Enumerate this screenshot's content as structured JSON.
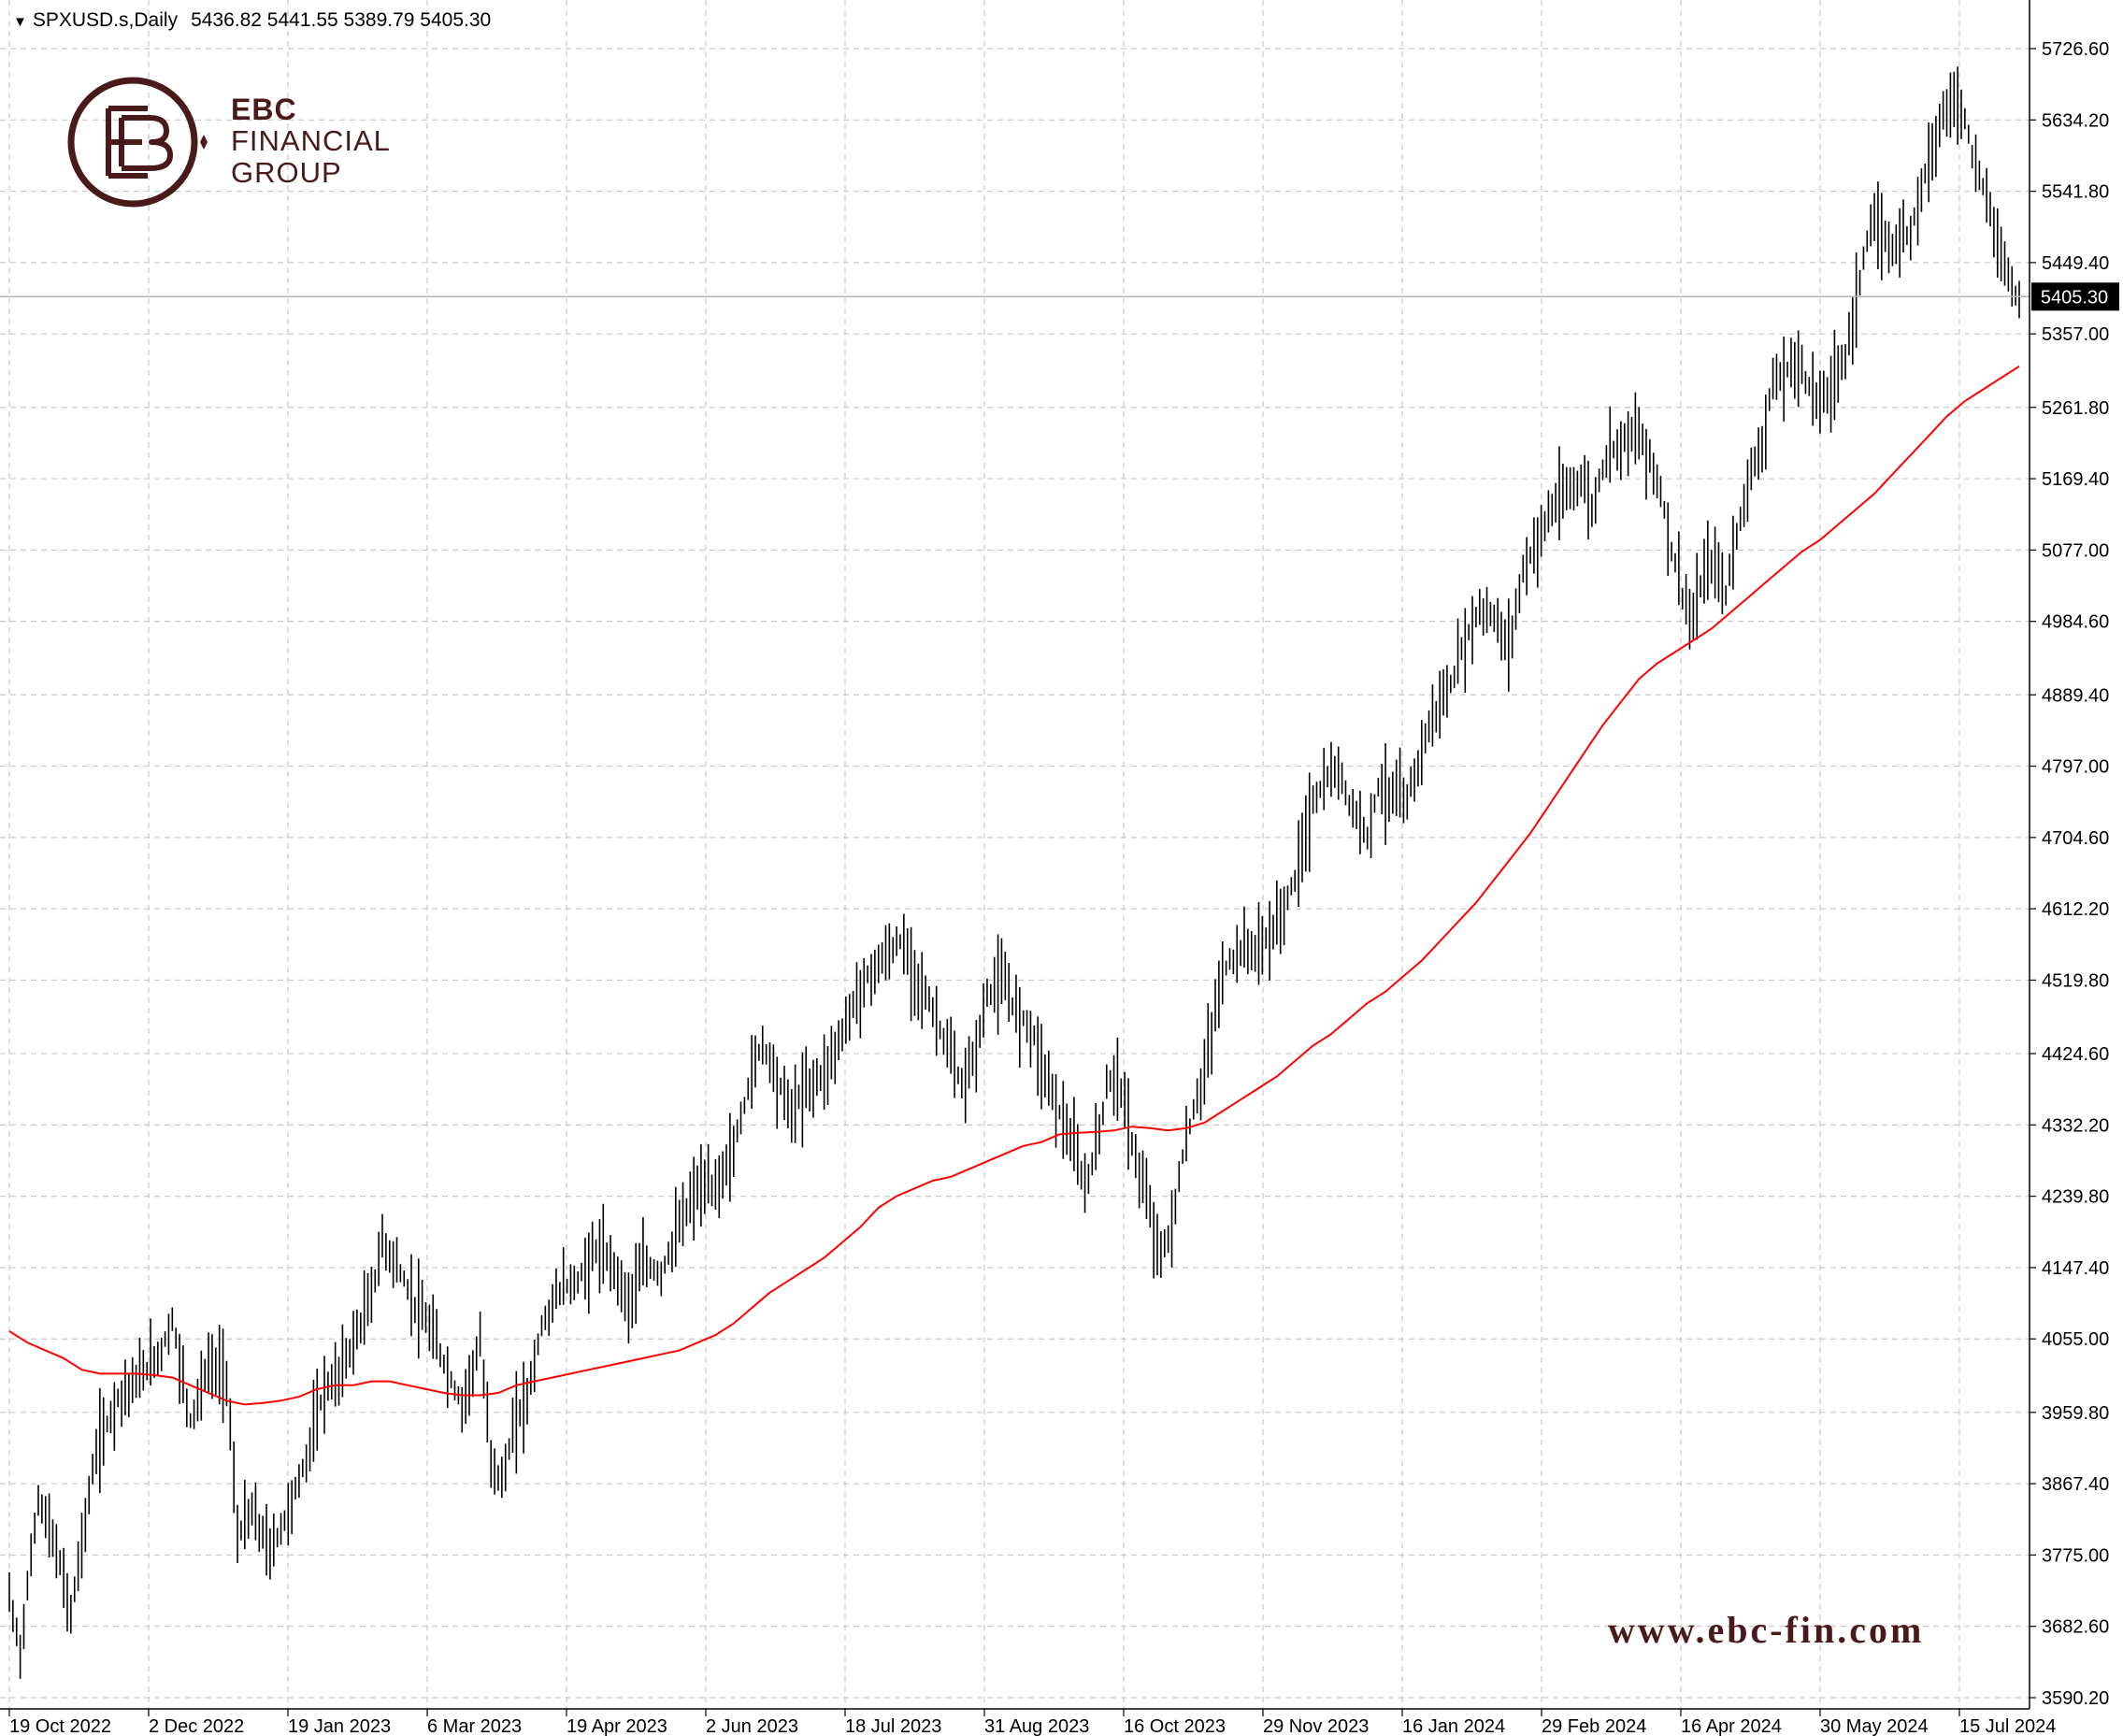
{
  "header": {
    "symbol": "SPXUSD.s,Daily",
    "ohlc": "5436.82 5441.55 5389.79 5405.30"
  },
  "logo": {
    "line1": "EBC",
    "line2": "FINANCIAL",
    "line3": "GROUP"
  },
  "watermark": "www.ebc-fin.com",
  "colors": {
    "ma": "#ff0000",
    "candles": "#000000",
    "grid": "#c8c8c8",
    "brand": "#4a1a1a"
  },
  "chart_data": {
    "type": "line",
    "grid": true,
    "ylim": [
      3590.2,
      5726.6
    ],
    "yticks": [
      "5726.60",
      "5634.20",
      "5541.80",
      "5449.40",
      "5357.00",
      "5261.80",
      "5169.40",
      "5077.00",
      "4984.60",
      "4889.40",
      "4797.00",
      "4704.60",
      "4612.20",
      "4519.80",
      "4424.60",
      "4332.20",
      "4239.80",
      "4147.40",
      "4055.00",
      "3959.80",
      "3867.40",
      "3775.00",
      "3682.60",
      "3590.20"
    ],
    "xticks": [
      "19 Oct 2022",
      "2 Dec 2022",
      "19 Jan 2023",
      "6 Mar 2023",
      "19 Apr 2023",
      "2 Jun 2023",
      "18 Jul 2023",
      "31 Aug 2023",
      "16 Oct 2023",
      "29 Nov 2023",
      "16 Jan 2024",
      "29 Feb 2024",
      "16 Apr 2024",
      "30 May 2024",
      "15 Jul 2024"
    ],
    "current_price": "5405.30",
    "price_path": [
      [
        0,
        3720
      ],
      [
        3,
        3650
      ],
      [
        8,
        3850
      ],
      [
        13,
        3780
      ],
      [
        17,
        3700
      ],
      [
        21,
        3820
      ],
      [
        24,
        3910
      ],
      [
        30,
        3980
      ],
      [
        35,
        4000
      ],
      [
        42,
        4040
      ],
      [
        45,
        4080
      ],
      [
        50,
        3950
      ],
      [
        55,
        4020
      ],
      [
        60,
        4010
      ],
      [
        63,
        3800
      ],
      [
        67,
        3830
      ],
      [
        72,
        3780
      ],
      [
        77,
        3830
      ],
      [
        82,
        3900
      ],
      [
        87,
        3990
      ],
      [
        90,
        4000
      ],
      [
        95,
        4050
      ],
      [
        100,
        4110
      ],
      [
        103,
        4180
      ],
      [
        107,
        4150
      ],
      [
        112,
        4100
      ],
      [
        117,
        4060
      ],
      [
        122,
        4000
      ],
      [
        125,
        3970
      ],
      [
        130,
        4050
      ],
      [
        133,
        3900
      ],
      [
        136,
        3870
      ],
      [
        140,
        3950
      ],
      [
        143,
        3980
      ],
      [
        147,
        4070
      ],
      [
        152,
        4120
      ],
      [
        157,
        4130
      ],
      [
        162,
        4170
      ],
      [
        167,
        4150
      ],
      [
        171,
        4100
      ],
      [
        175,
        4150
      ],
      [
        180,
        4140
      ],
      [
        185,
        4200
      ],
      [
        190,
        4250
      ],
      [
        195,
        4250
      ],
      [
        200,
        4300
      ],
      [
        205,
        4400
      ],
      [
        208,
        4440
      ],
      [
        213,
        4380
      ],
      [
        216,
        4350
      ],
      [
        220,
        4380
      ],
      [
        225,
        4400
      ],
      [
        230,
        4450
      ],
      [
        234,
        4500
      ],
      [
        238,
        4530
      ],
      [
        242,
        4550
      ],
      [
        246,
        4570
      ],
      [
        250,
        4530
      ],
      [
        255,
        4480
      ],
      [
        260,
        4420
      ],
      [
        263,
        4380
      ],
      [
        267,
        4430
      ],
      [
        270,
        4500
      ],
      [
        274,
        4520
      ],
      [
        278,
        4480
      ],
      [
        282,
        4460
      ],
      [
        286,
        4400
      ],
      [
        290,
        4350
      ],
      [
        294,
        4300
      ],
      [
        297,
        4250
      ],
      [
        300,
        4300
      ],
      [
        303,
        4380
      ],
      [
        306,
        4400
      ],
      [
        309,
        4330
      ],
      [
        312,
        4270
      ],
      [
        315,
        4220
      ],
      [
        318,
        4160
      ],
      [
        321,
        4200
      ],
      [
        324,
        4290
      ],
      [
        327,
        4350
      ],
      [
        330,
        4400
      ],
      [
        335,
        4530
      ],
      [
        340,
        4560
      ],
      [
        345,
        4560
      ],
      [
        350,
        4590
      ],
      [
        355,
        4650
      ],
      [
        360,
        4750
      ],
      [
        364,
        4780
      ],
      [
        367,
        4790
      ],
      [
        371,
        4740
      ],
      [
        375,
        4710
      ],
      [
        378,
        4770
      ],
      [
        382,
        4760
      ],
      [
        386,
        4750
      ],
      [
        390,
        4820
      ],
      [
        394,
        4870
      ],
      [
        398,
        4900
      ],
      [
        402,
        4960
      ],
      [
        406,
        5000
      ],
      [
        410,
        4990
      ],
      [
        414,
        4950
      ],
      [
        418,
        5050
      ],
      [
        422,
        5090
      ],
      [
        426,
        5130
      ],
      [
        430,
        5150
      ],
      [
        434,
        5170
      ],
      [
        437,
        5130
      ],
      [
        441,
        5200
      ],
      [
        445,
        5220
      ],
      [
        449,
        5230
      ],
      [
        453,
        5200
      ],
      [
        456,
        5150
      ],
      [
        459,
        5080
      ],
      [
        462,
        5020
      ],
      [
        465,
        4980
      ],
      [
        468,
        5050
      ],
      [
        471,
        5060
      ],
      [
        474,
        5020
      ],
      [
        477,
        5100
      ],
      [
        480,
        5160
      ],
      [
        484,
        5220
      ],
      [
        487,
        5290
      ],
      [
        491,
        5310
      ],
      [
        494,
        5320
      ],
      [
        498,
        5280
      ],
      [
        501,
        5270
      ],
      [
        504,
        5300
      ],
      [
        507,
        5330
      ],
      [
        510,
        5400
      ],
      [
        513,
        5480
      ],
      [
        516,
        5500
      ],
      [
        519,
        5470
      ],
      [
        522,
        5480
      ],
      [
        525,
        5490
      ],
      [
        528,
        5550
      ],
      [
        531,
        5600
      ],
      [
        534,
        5640
      ],
      [
        537,
        5660
      ],
      [
        540,
        5640
      ],
      [
        543,
        5570
      ],
      [
        547,
        5520
      ],
      [
        550,
        5460
      ],
      [
        553,
        5420
      ],
      [
        555,
        5400
      ]
    ],
    "series": [
      {
        "name": "",
        "values": [
          [
            0,
            4065
          ],
          [
            5,
            4050
          ],
          [
            10,
            4040
          ],
          [
            15,
            4030
          ],
          [
            20,
            4015
          ],
          [
            25,
            4010
          ],
          [
            30,
            4010
          ],
          [
            35,
            4010
          ],
          [
            40,
            4008
          ],
          [
            45,
            4005
          ],
          [
            50,
            3995
          ],
          [
            55,
            3985
          ],
          [
            60,
            3975
          ],
          [
            65,
            3970
          ],
          [
            70,
            3972
          ],
          [
            75,
            3975
          ],
          [
            80,
            3980
          ],
          [
            85,
            3990
          ],
          [
            90,
            3995
          ],
          [
            95,
            3995
          ],
          [
            100,
            4000
          ],
          [
            105,
            4000
          ],
          [
            110,
            3995
          ],
          [
            115,
            3990
          ],
          [
            120,
            3985
          ],
          [
            125,
            3982
          ],
          [
            130,
            3982
          ],
          [
            135,
            3985
          ],
          [
            140,
            3995
          ],
          [
            145,
            4000
          ],
          [
            150,
            4005
          ],
          [
            155,
            4010
          ],
          [
            160,
            4015
          ],
          [
            165,
            4020
          ],
          [
            170,
            4025
          ],
          [
            175,
            4030
          ],
          [
            180,
            4035
          ],
          [
            185,
            4040
          ],
          [
            190,
            4050
          ],
          [
            195,
            4060
          ],
          [
            200,
            4075
          ],
          [
            205,
            4095
          ],
          [
            210,
            4115
          ],
          [
            215,
            4130
          ],
          [
            220,
            4145
          ],
          [
            225,
            4160
          ],
          [
            230,
            4180
          ],
          [
            235,
            4200
          ],
          [
            240,
            4225
          ],
          [
            245,
            4240
          ],
          [
            250,
            4250
          ],
          [
            255,
            4260
          ],
          [
            260,
            4265
          ],
          [
            265,
            4275
          ],
          [
            270,
            4285
          ],
          [
            275,
            4295
          ],
          [
            280,
            4305
          ],
          [
            285,
            4310
          ],
          [
            290,
            4320
          ],
          [
            295,
            4322
          ],
          [
            300,
            4323
          ],
          [
            305,
            4325
          ],
          [
            310,
            4330
          ],
          [
            315,
            4328
          ],
          [
            320,
            4325
          ],
          [
            325,
            4328
          ],
          [
            330,
            4335
          ],
          [
            335,
            4350
          ],
          [
            340,
            4365
          ],
          [
            345,
            4380
          ],
          [
            350,
            4395
          ],
          [
            355,
            4415
          ],
          [
            360,
            4435
          ],
          [
            365,
            4450
          ],
          [
            370,
            4470
          ],
          [
            375,
            4490
          ],
          [
            380,
            4505
          ],
          [
            385,
            4525
          ],
          [
            390,
            4545
          ],
          [
            395,
            4570
          ],
          [
            400,
            4595
          ],
          [
            405,
            4620
          ],
          [
            410,
            4650
          ],
          [
            415,
            4680
          ],
          [
            420,
            4710
          ],
          [
            425,
            4745
          ],
          [
            430,
            4780
          ],
          [
            435,
            4815
          ],
          [
            440,
            4850
          ],
          [
            445,
            4880
          ],
          [
            450,
            4910
          ],
          [
            455,
            4930
          ],
          [
            460,
            4945
          ],
          [
            465,
            4960
          ],
          [
            470,
            4975
          ],
          [
            475,
            4995
          ],
          [
            480,
            5015
          ],
          [
            485,
            5035
          ],
          [
            490,
            5055
          ],
          [
            495,
            5075
          ],
          [
            500,
            5090
          ],
          [
            505,
            5110
          ],
          [
            510,
            5130
          ],
          [
            515,
            5150
          ],
          [
            520,
            5175
          ],
          [
            525,
            5200
          ],
          [
            530,
            5225
          ],
          [
            535,
            5250
          ],
          [
            540,
            5270
          ],
          [
            545,
            5285
          ],
          [
            550,
            5300
          ],
          [
            555,
            5315
          ]
        ]
      }
    ]
  }
}
